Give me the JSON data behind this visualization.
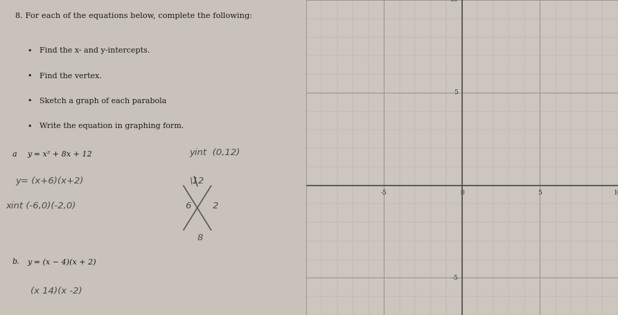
{
  "background_color": "#c8c2ba",
  "grid_bg_color": "#ccc6be",
  "title": "8. For each of the equations below, complete the following:",
  "bullets": [
    "Find the x- and y-intercepts.",
    "Find the vertex.",
    "Sketch a graph of each parabola",
    "Write the equation in graphing form."
  ],
  "xmin": -10,
  "xmax": 10,
  "ymin": -7,
  "ymax": 10,
  "grid_minor_color": "#b0aaa2",
  "grid_major_color": "#9a948c",
  "axis_color": "#444444",
  "tick_label_color": "#333333"
}
